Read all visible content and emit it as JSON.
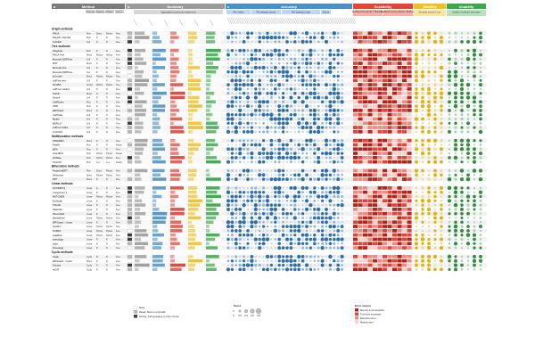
{
  "headers": [
    {
      "num": "a",
      "label": "Method",
      "color": "#7a7a7a"
    },
    {
      "num": "b",
      "label": "Summary",
      "color": "#9a9a9a"
    },
    {
      "num": "c",
      "label": "Accuracy",
      "color": "#4a90c8"
    },
    {
      "num": "",
      "label": "Scalability",
      "color": "#e0453a"
    },
    {
      "num": "",
      "label": "Stability",
      "color": "#f0c020"
    },
    {
      "num": "",
      "label": "Usability",
      "color": "#3aa84a"
    }
  ],
  "subheaders": {
    "method_cols": [
      "Priors required",
      "Wrapper type",
      "Platform",
      "License"
    ],
    "summary": "Aggregated scores per experiment",
    "accuracy": [
      "Per metric",
      "Per dataset source",
      "Per trajectory type",
      "Errors"
    ],
    "scalability": [
      "Predicted time (#cells × #features)",
      "Predicted memory (#cells × #features)"
    ],
    "stability": "Similarity between runs",
    "usability": "Quality of software and paper"
  },
  "sections": [
    {
      "title": "Graph methods",
      "rows": [
        {
          "name": "PAGA",
          "p": "Prior",
          "w": "Direct",
          "pl": "Python",
          "l": "Free"
        },
        {
          "name": "RaceID / StemID",
          "p": "Prior",
          "w": "R",
          "pl": "R",
          "l": "Free"
        },
        {
          "name": "SLICER",
          "p": "Cell",
          "w": "R",
          "pl": "R",
          "l": "Free"
        }
      ]
    },
    {
      "title": "Tree methods",
      "rows": [
        {
          "name": "Slingshot",
          "p": "Prior",
          "w": "R",
          "pl": "R",
          "l": "Free"
        },
        {
          "name": "PAGA Tree",
          "p": "Direct",
          "w": "Python",
          "pl": "Python",
          "l": "Free"
        },
        {
          "name": "Monocle DDRTree",
          "p": "Cell",
          "w": "R",
          "pl": "R",
          "l": "Free"
        },
        {
          "name": "MST",
          "p": "Direct",
          "w": "R",
          "pl": "R",
          "l": "Free"
        },
        {
          "name": "Monocle ICA",
          "p": "Cell",
          "w": "R",
          "pl": "R",
          "l": "Free"
        },
        {
          "name": "Monocle DDRTree",
          "p": "Cell",
          "w": "R",
          "pl": "R",
          "l": "Free"
        },
        {
          "name": "pCreode",
          "p": "Direct",
          "w": "Python",
          "pl": "Python",
          "l": "Free"
        },
        {
          "name": "cellTree vem",
          "p": "Cell",
          "w": "R",
          "pl": "R",
          "l": "Free"
        },
        {
          "name": "SCUBA",
          "p": "Cluster",
          "w": "Python",
          "pl": "Python",
          "l": "Free"
        },
        {
          "name": "cellTree maptpx",
          "p": "Cell",
          "w": "R",
          "pl": "R",
          "l": "Free"
        },
        {
          "name": "SLICE",
          "p": "Direct",
          "w": "R",
          "pl": "R",
          "l": "Free"
        },
        {
          "name": "Sincell",
          "p": "Cell",
          "w": "R",
          "pl": "R",
          "l": "Free"
        },
        {
          "name": "CellRouter",
          "p": "Prior",
          "w": "R",
          "pl": "R",
          "l": "Free"
        },
        {
          "name": "URD",
          "p": "Prior",
          "w": "R",
          "pl": "R",
          "l": "Free"
        },
        {
          "name": "ElPiGraph",
          "p": "Direct",
          "w": "R",
          "pl": "R",
          "l": "Free"
        },
        {
          "name": "CellTrails",
          "p": "Cell",
          "w": "R",
          "pl": "R",
          "l": "Free"
        },
        {
          "name": "Mpath",
          "p": "Cell",
          "w": "R",
          "pl": "R",
          "l": "Free"
        },
        {
          "name": "MERLoT",
          "p": "Cell",
          "w": "R",
          "pl": "R",
          "l": "Free"
        },
        {
          "name": "cellTree Gibbs",
          "p": "Cell",
          "w": "R",
          "pl": "R",
          "l": "Free"
        },
        {
          "name": "CALISTA",
          "p": "Cell",
          "w": "R",
          "pl": "R",
          "l": "Free"
        }
      ]
    },
    {
      "title": "Multifurcation methods",
      "rows": [
        {
          "name": "STEMNET",
          "p": "Direct",
          "w": "R",
          "pl": "R",
          "l": "Free"
        },
        {
          "name": "FateID",
          "p": "Prior",
          "w": "R",
          "pl": "R",
          "l": "Param"
        },
        {
          "name": "MFA",
          "p": "Prior",
          "w": "R",
          "pl": "R",
          "l": "Free"
        },
        {
          "name": "GrandPrix",
          "p": "Prior",
          "w": "Python",
          "pl": "Python",
          "l": "Param"
        },
        {
          "name": "GPfates",
          "p": "Prior",
          "w": "Python",
          "pl": "Python",
          "l": "Free"
        },
        {
          "name": "SCOUP",
          "p": "Prior",
          "w": "C++",
          "pl": "C++",
          "l": "Param"
        }
      ]
    },
    {
      "title": "Bifurcation methods",
      "rows": [
        {
          "name": "ProjectedDPT",
          "p": "Prior",
          "w": "Direct",
          "pl": "Python",
          "l": "Free"
        },
        {
          "name": "Wishbone",
          "p": "Direct",
          "w": "Python",
          "pl": "Python",
          "l": "Free"
        },
        {
          "name": "DPT",
          "p": "Direct",
          "w": "R",
          "pl": "R",
          "l": "Free"
        }
      ]
    },
    {
      "title": "Linear methods",
      "rows": [
        {
          "name": "SCORPIUS",
          "p": "Linear",
          "w": "R",
          "pl": "R",
          "l": "Free"
        },
        {
          "name": "Component 1",
          "p": "Linear",
          "w": "R",
          "pl": "R",
          "l": "Free"
        },
        {
          "name": "MATCHER",
          "p": "Linear",
          "w": "Python",
          "pl": "Python",
          "l": "Free"
        },
        {
          "name": "Embeddr",
          "p": "Linear",
          "w": "R",
          "pl": "R",
          "l": "Free"
        },
        {
          "name": "TSCAN",
          "p": "Linear",
          "w": "R",
          "pl": "R",
          "l": "Free"
        },
        {
          "name": "Waterfall",
          "p": "Linear",
          "w": "R",
          "pl": "R",
          "l": "Free"
        },
        {
          "name": "PhenoPath",
          "p": "Linear",
          "w": "R",
          "pl": "R",
          "l": "Free"
        },
        {
          "name": "Wanderlust",
          "p": "Linear",
          "w": "Python",
          "pl": "Python",
          "l": "Free"
        },
        {
          "name": "ElPiGraph - Linear",
          "p": "Linear",
          "w": "R",
          "pl": "R",
          "l": "Free"
        },
        {
          "name": "topslam",
          "p": "Linear",
          "w": "Python",
          "pl": "Python",
          "l": "Free"
        },
        {
          "name": "FORKS",
          "p": "Linear",
          "w": "Python",
          "pl": "Python",
          "l": "Free"
        },
        {
          "name": "ouijaflow",
          "p": "Linear",
          "w": "Python",
          "pl": "Python",
          "l": "Free"
        },
        {
          "name": "pseudogp",
          "p": "Linear",
          "w": "R",
          "pl": "R",
          "l": "Free"
        },
        {
          "name": "ouija",
          "p": "Linear",
          "w": "R",
          "pl": "R",
          "l": "Free"
        },
        {
          "name": "Pseudogp",
          "p": "Linear",
          "w": "R",
          "pl": "R",
          "l": "Free"
        }
      ]
    },
    {
      "title": "Cyclic methods",
      "rows": [
        {
          "name": "Angle",
          "p": "Cyclic",
          "w": "R",
          "pl": "R",
          "l": "Free"
        },
        {
          "name": "ElPiGraph - Cyclic",
          "p": "Direct",
          "w": "R",
          "pl": "R",
          "l": "Free"
        },
        {
          "name": "Oscope",
          "p": "Cyclic",
          "w": "R",
          "pl": "R",
          "l": "Free"
        },
        {
          "name": "reCAT",
          "p": "Cyclic",
          "w": "R",
          "pl": "R",
          "l": "Free"
        }
      ]
    }
  ],
  "legend": {
    "priors": [
      "None",
      "Weak: Start or end cells",
      "Strong: Cell grouping or time course"
    ],
    "score_title": "Score",
    "score_ticks": [
      "0",
      "0.2",
      "0.4",
      "0.6",
      "0.8"
    ],
    "error_title": "Error reason",
    "errors": [
      "Memory limit exceeded",
      "Time limit exceeded",
      "Execution error",
      "Method error"
    ]
  },
  "colors": {
    "summary": "#9a9a9a",
    "accuracy": "#4a90c8",
    "scalability": "#e0453a",
    "stability": "#f0c020",
    "usability": "#3aa84a"
  }
}
